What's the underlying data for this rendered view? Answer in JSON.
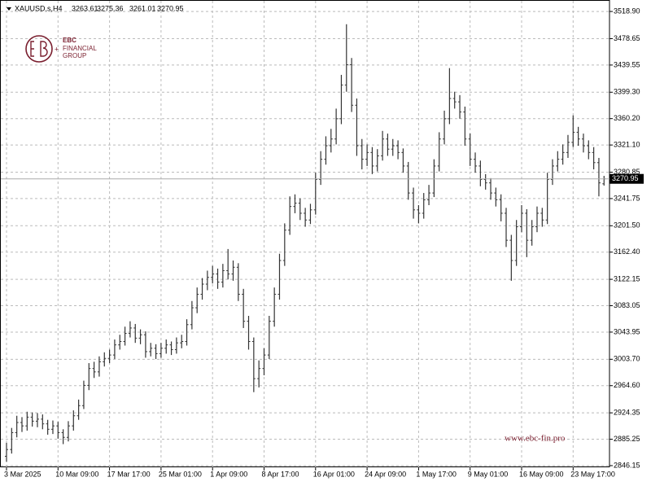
{
  "chart_data": {
    "type": "ohlc",
    "title": "XAUUSD.s,H4",
    "color": "#333333",
    "grid": true,
    "categories": [
      "3 Mar 2025",
      null,
      null,
      null,
      null,
      null,
      null,
      null,
      null,
      null,
      "10 Mar 09:00",
      null,
      null,
      null,
      null,
      null,
      null,
      null,
      null,
      null,
      "17 Mar 17:00",
      null,
      null,
      null,
      null,
      null,
      null,
      null,
      null,
      null,
      "25 Mar 01:00",
      null,
      null,
      null,
      null,
      null,
      null,
      null,
      null,
      null,
      "1 Apr 09:00",
      null,
      null,
      null,
      null,
      null,
      null,
      null,
      null,
      null,
      "8 Apr 17:00",
      null,
      null,
      null,
      null,
      null,
      null,
      null,
      null,
      null,
      "16 Apr 01:00",
      null,
      null,
      null,
      null,
      null,
      null,
      null,
      null,
      null,
      "24 Apr 09:00",
      null,
      null,
      null,
      null,
      null,
      null,
      null,
      null,
      null,
      "1 May 17:00",
      null,
      null,
      null,
      null,
      null,
      null,
      null,
      null,
      null,
      "9 May 01:00",
      null,
      null,
      null,
      null,
      null,
      null,
      null,
      null,
      null,
      "16 May 09:00",
      null,
      null,
      null,
      null,
      null,
      null,
      null,
      null,
      null,
      "23 May 17:00",
      null,
      null,
      null,
      null,
      null,
      null
    ],
    "open": [
      2860,
      2870,
      2895,
      2910,
      2905,
      2918,
      2912,
      2915,
      2908,
      2900,
      2905,
      2895,
      2888,
      2905,
      2920,
      2935,
      2965,
      2990,
      2985,
      3000,
      3005,
      3010,
      3025,
      3030,
      3042,
      3050,
      3035,
      3040,
      3015,
      3020,
      3012,
      3020,
      3025,
      3018,
      3028,
      3030,
      3055,
      3080,
      3100,
      3115,
      3125,
      3130,
      3118,
      3135,
      3130,
      3140,
      3100,
      3060,
      3030,
      2975,
      2990,
      3010,
      3060,
      3100,
      3150,
      3195,
      3230,
      3235,
      3220,
      3210,
      3225,
      3270,
      3300,
      3320,
      3330,
      3360,
      3410,
      3440,
      3380,
      3320,
      3300,
      3310,
      3290,
      3305,
      3330,
      3315,
      3320,
      3310,
      3290,
      3250,
      3225,
      3220,
      3240,
      3250,
      3290,
      3330,
      3360,
      3390,
      3385,
      3370,
      3330,
      3300,
      3290,
      3270,
      3265,
      3250,
      3240,
      3220,
      3180,
      3150,
      3200,
      3220,
      3180,
      3200,
      3220,
      3210,
      3270,
      3290,
      3300,
      3310,
      3325,
      3340,
      3330,
      3320,
      3310,
      3295,
      3263.61
    ],
    "high": [
      2880,
      2902,
      2920,
      2918,
      2926,
      2925,
      2924,
      2922,
      2914,
      2913,
      2911,
      2900,
      2912,
      2928,
      2944,
      2972,
      2998,
      3000,
      3008,
      3014,
      3018,
      3033,
      3040,
      3052,
      3060,
      3056,
      3048,
      3045,
      3028,
      3026,
      3028,
      3033,
      3030,
      3036,
      3040,
      3063,
      3090,
      3110,
      3124,
      3135,
      3142,
      3138,
      3145,
      3167,
      3150,
      3146,
      3108,
      3068,
      3036,
      3002,
      3020,
      3068,
      3110,
      3160,
      3205,
      3245,
      3248,
      3242,
      3228,
      3234,
      3280,
      3312,
      3334,
      3345,
      3375,
      3425,
      3500,
      3450,
      3390,
      3330,
      3322,
      3318,
      3315,
      3342,
      3338,
      3330,
      3328,
      3316,
      3296,
      3258,
      3232,
      3250,
      3262,
      3300,
      3340,
      3372,
      3435,
      3400,
      3395,
      3378,
      3338,
      3310,
      3298,
      3278,
      3272,
      3258,
      3248,
      3228,
      3188,
      3210,
      3232,
      3226,
      3210,
      3230,
      3228,
      3280,
      3300,
      3312,
      3322,
      3336,
      3365,
      3348,
      3338,
      3328,
      3318,
      3302,
      3275.36
    ],
    "low": [
      2852,
      2864,
      2888,
      2896,
      2898,
      2904,
      2903,
      2900,
      2892,
      2893,
      2886,
      2878,
      2882,
      2898,
      2914,
      2930,
      2958,
      2976,
      2978,
      2993,
      2998,
      3004,
      3018,
      3024,
      3036,
      3028,
      3026,
      3006,
      3008,
      3004,
      3006,
      3012,
      3010,
      3012,
      3020,
      3024,
      3048,
      3072,
      3092,
      3106,
      3116,
      3108,
      3110,
      3122,
      3120,
      3090,
      3050,
      3018,
      2955,
      2962,
      2980,
      3004,
      3052,
      3092,
      3142,
      3188,
      3220,
      3210,
      3200,
      3204,
      3218,
      3262,
      3292,
      3310,
      3322,
      3352,
      3400,
      3370,
      3305,
      3285,
      3290,
      3278,
      3282,
      3298,
      3305,
      3305,
      3300,
      3280,
      3240,
      3212,
      3205,
      3212,
      3232,
      3244,
      3282,
      3322,
      3352,
      3375,
      3360,
      3320,
      3290,
      3280,
      3260,
      3255,
      3240,
      3230,
      3208,
      3170,
      3120,
      3142,
      3192,
      3155,
      3172,
      3192,
      3200,
      3204,
      3262,
      3282,
      3292,
      3302,
      3318,
      3320,
      3310,
      3300,
      3285,
      3245,
      3261.01
    ],
    "close": [
      2870,
      2895,
      2910,
      2905,
      2918,
      2912,
      2915,
      2908,
      2900,
      2905,
      2895,
      2888,
      2905,
      2920,
      2935,
      2965,
      2990,
      2985,
      3000,
      3005,
      3010,
      3025,
      3030,
      3042,
      3050,
      3035,
      3040,
      3015,
      3020,
      3012,
      3020,
      3025,
      3018,
      3028,
      3030,
      3055,
      3080,
      3100,
      3115,
      3125,
      3130,
      3118,
      3135,
      3130,
      3140,
      3100,
      3060,
      3030,
      2975,
      2990,
      3010,
      3060,
      3100,
      3150,
      3195,
      3230,
      3235,
      3220,
      3210,
      3225,
      3270,
      3300,
      3320,
      3330,
      3360,
      3410,
      3440,
      3380,
      3320,
      3300,
      3310,
      3290,
      3305,
      3330,
      3315,
      3320,
      3310,
      3290,
      3250,
      3225,
      3220,
      3240,
      3250,
      3290,
      3330,
      3360,
      3390,
      3385,
      3370,
      3330,
      3300,
      3290,
      3270,
      3265,
      3250,
      3240,
      3220,
      3180,
      3150,
      3200,
      3220,
      3180,
      3200,
      3220,
      3210,
      3270,
      3290,
      3300,
      3310,
      3325,
      3340,
      3330,
      3320,
      3310,
      3295,
      3265,
      3270.95
    ],
    "ylim": [
      2843.7,
      3535.9
    ],
    "yticks": [
      {
        "value": 3518.9,
        "label": "3518.90"
      },
      3478.65,
      3439.55,
      {
        "value": 3399.3,
        "label": "3399.30"
      },
      {
        "value": 3360.2,
        "label": "3360.20"
      },
      {
        "value": 3321.1,
        "label": "3321.10"
      },
      3280.85,
      3241.75,
      {
        "value": 3201.5,
        "label": "3201.50"
      },
      {
        "value": 3162.4,
        "label": "3162.40"
      },
      3122.15,
      3083.05,
      3043.95,
      {
        "value": 3003.7,
        "label": "3003.70"
      },
      {
        "value": 2964.6,
        "label": "2964.60"
      },
      2924.35,
      2885.25,
      2846.15
    ]
  },
  "watermark": {
    "logo": [
      "EBC",
      "FINANCIAL",
      "GROUP"
    ],
    "url": "www.ebc-fin.pro"
  }
}
